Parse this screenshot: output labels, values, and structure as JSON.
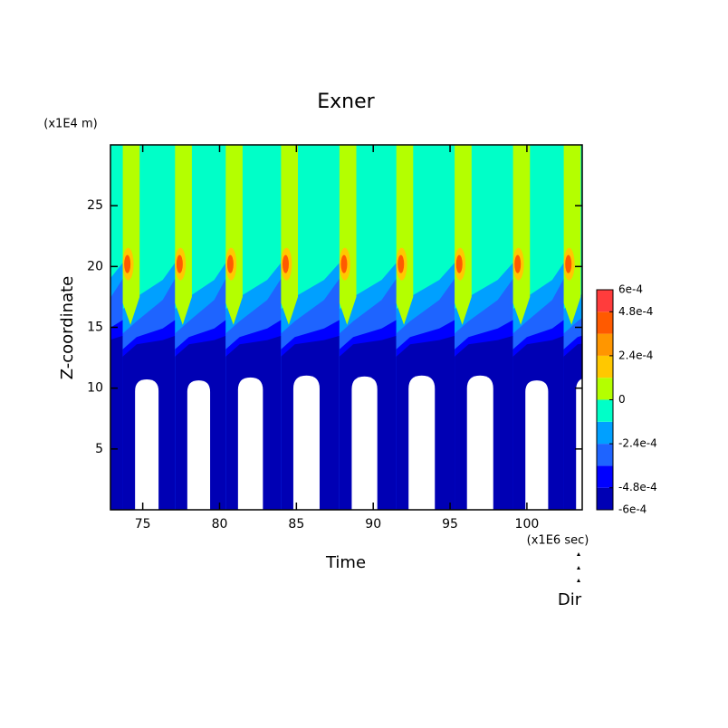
{
  "chart_data": {
    "type": "contour",
    "title": "Exner",
    "xlabel": "Time",
    "xunit": "(x1E6 sec)",
    "ylabel": "Z-coordinate",
    "yunit": "(x1E4 m)",
    "note": "Dir",
    "xlim": [
      72.9,
      103.6
    ],
    "xticks": [
      75,
      80,
      85,
      90,
      95,
      100
    ],
    "ylim": [
      0,
      30
    ],
    "yticks": [
      5,
      10,
      15,
      20,
      25
    ],
    "events": [
      73.7,
      77.1,
      80.4,
      84.0,
      87.8,
      91.5,
      95.3,
      99.1,
      102.4
    ],
    "levels": [
      -0.0006,
      -0.00048,
      -0.00036,
      -0.00024,
      -0.00012,
      0,
      0.00012,
      0.00024,
      0.00036,
      0.00048,
      0.0006
    ],
    "colors": [
      "#0000b4",
      "#0000ff",
      "#1e64ff",
      "#00a0ff",
      "#00ffc8",
      "#b4ff00",
      "#ffc800",
      "#ff9600",
      "#ff5a00",
      "#ff3c3c"
    ],
    "clim": [
      -0.0006,
      0.0006
    ],
    "cticks": [
      {
        "value": 0.0006,
        "label": "6e-4"
      },
      {
        "value": 0.00048,
        "label": "4.8e-4"
      },
      {
        "value": 0.00024,
        "label": "2.4e-4"
      },
      0,
      {
        "value": -0.00024,
        "label": "-2.4e-4"
      },
      {
        "value": -0.00048,
        "label": "-4.8e-4"
      },
      {
        "value": -0.0006,
        "label": "-6e-4"
      }
    ]
  }
}
